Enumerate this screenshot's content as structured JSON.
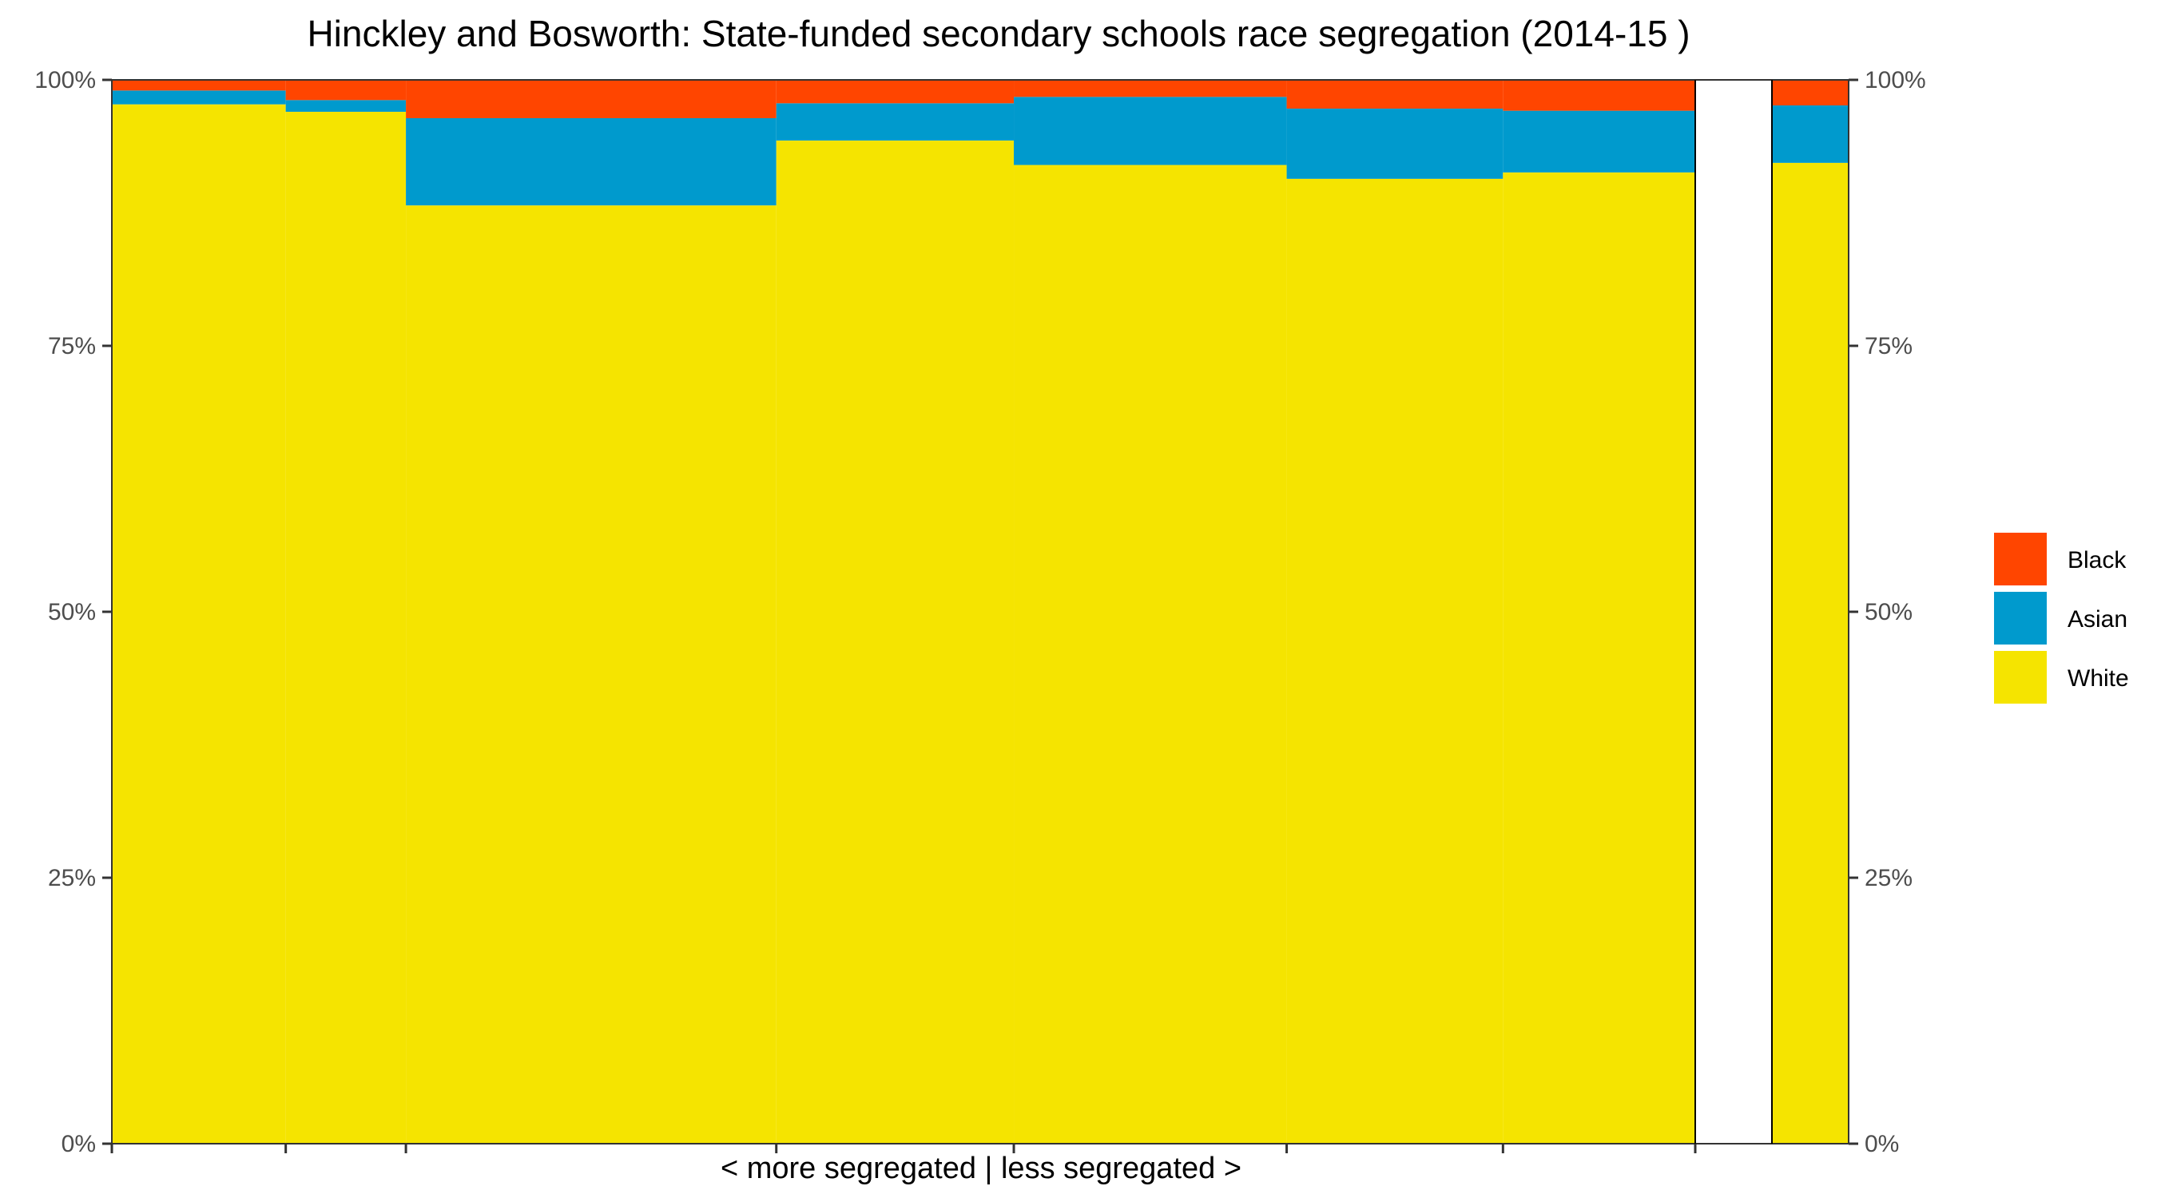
{
  "chart_data": {
    "type": "bar",
    "title": "Hinckley and Bosworth: State-funded secondary schools race segregation (2014-15 )",
    "xlabel": "< more segregated | less segregated >",
    "ylabel": "",
    "ylim": [
      0,
      100
    ],
    "yticks": [
      "0%",
      "25%",
      "50%",
      "75%",
      "100%"
    ],
    "legend_position": "right",
    "stack_order": [
      "White",
      "Asian",
      "Black"
    ],
    "colors": {
      "White": "#f5e400",
      "Asian": "#009acd",
      "Black": "#ff4500"
    },
    "legend": [
      "Black",
      "Asian",
      "White"
    ],
    "bars": [
      {
        "width": 12.3,
        "White": 97.7,
        "Asian": 1.3,
        "Black": 1.0
      },
      {
        "width": 8.5,
        "White": 97.0,
        "Asian": 1.1,
        "Black": 1.9
      },
      {
        "width": 26.2,
        "White": 88.2,
        "Asian": 8.2,
        "Black": 3.6
      },
      {
        "width": 16.8,
        "White": 94.3,
        "Asian": 3.5,
        "Black": 2.2
      },
      {
        "width": 19.3,
        "White": 92.0,
        "Asian": 6.4,
        "Black": 1.6
      },
      {
        "width": 15.3,
        "White": 90.7,
        "Asian": 6.6,
        "Black": 2.7
      },
      {
        "width": 13.6,
        "White": 91.3,
        "Asian": 5.8,
        "Black": 2.9
      }
    ],
    "summary_bar": {
      "White": 92.2,
      "Asian": 5.4,
      "Black": 2.4
    }
  }
}
